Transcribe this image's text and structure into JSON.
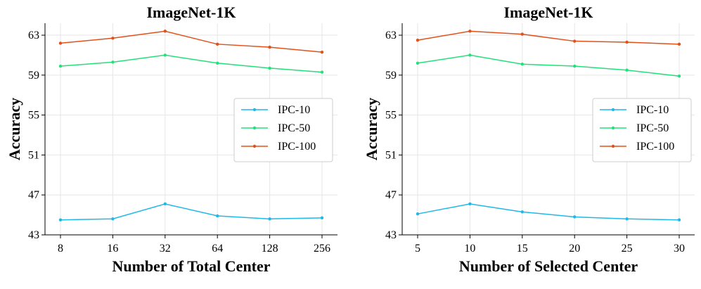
{
  "chart_data": [
    {
      "type": "line",
      "title": "ImageNet-1K",
      "xlabel": "Number of Total Center",
      "ylabel": "Accuracy",
      "categories": [
        "8",
        "16",
        "32",
        "64",
        "128",
        "256"
      ],
      "ylim": [
        43,
        64.2
      ],
      "yticks": [
        43,
        47,
        51,
        55,
        59,
        63
      ],
      "grid": true,
      "legend_position": "center-right",
      "series": [
        {
          "name": "IPC-10",
          "color": "#1fb8e8",
          "values": [
            44.5,
            44.6,
            46.1,
            44.9,
            44.6,
            44.7
          ]
        },
        {
          "name": "IPC-50",
          "color": "#23e07a",
          "values": [
            59.9,
            60.3,
            61.0,
            60.2,
            59.7,
            59.3
          ]
        },
        {
          "name": "IPC-100",
          "color": "#e2511a",
          "values": [
            62.2,
            62.7,
            63.4,
            62.1,
            61.8,
            61.3
          ]
        }
      ]
    },
    {
      "type": "line",
      "title": "ImageNet-1K",
      "xlabel": "Number of Selected Center",
      "ylabel": "Accuracy",
      "categories": [
        "5",
        "10",
        "15",
        "20",
        "25",
        "30"
      ],
      "ylim": [
        43,
        64.2
      ],
      "yticks": [
        43,
        47,
        51,
        55,
        59,
        63
      ],
      "grid": true,
      "legend_position": "center-right",
      "series": [
        {
          "name": "IPC-10",
          "color": "#1fb8e8",
          "values": [
            45.1,
            46.1,
            45.3,
            44.8,
            44.6,
            44.5
          ]
        },
        {
          "name": "IPC-50",
          "color": "#23e07a",
          "values": [
            60.2,
            61.0,
            60.1,
            59.9,
            59.5,
            58.9
          ]
        },
        {
          "name": "IPC-100",
          "color": "#e2511a",
          "values": [
            62.5,
            63.4,
            63.1,
            62.4,
            62.3,
            62.1
          ]
        }
      ]
    }
  ]
}
